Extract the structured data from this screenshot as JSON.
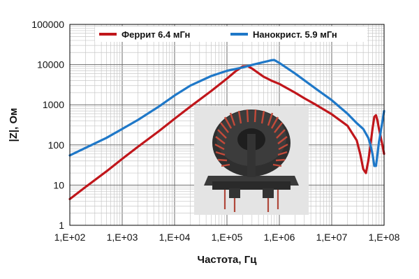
{
  "chart_data": {
    "type": "line",
    "title": "",
    "xlabel": "Частота, Гц",
    "ylabel": "|Z|, Ом",
    "xscale": "log",
    "yscale": "log",
    "xlim": [
      100,
      100000000
    ],
    "ylim": [
      1,
      100000
    ],
    "grid": true,
    "legend_position": "top",
    "x_tick_labels": [
      "1,E+02",
      "1,E+03",
      "1,E+04",
      "1,E+05",
      "1,E+06",
      "1,E+07",
      "1,E+08"
    ],
    "y_tick_labels": [
      "1",
      "10",
      "100",
      "1000",
      "10000",
      "100000"
    ],
    "series": [
      {
        "name": "Феррит  6.4 мГн",
        "color": "#c0161b",
        "x": [
          100,
          200,
          500,
          1000,
          2000,
          5000,
          10000,
          20000,
          50000,
          100000,
          150000,
          200000,
          250000,
          300000,
          500000,
          700000,
          1000000,
          2000000,
          3000000,
          5000000,
          10000000,
          20000000,
          30000000,
          35000000,
          40000000,
          45000000,
          50000000,
          55000000,
          60000000,
          65000000,
          70000000,
          75000000,
          80000000,
          90000000,
          100000000
        ],
        "y": [
          4.5,
          9,
          22,
          45,
          90,
          220,
          450,
          900,
          2200,
          4500,
          7000,
          9000,
          9200,
          8000,
          5000,
          4000,
          3300,
          2000,
          1450,
          1000,
          580,
          300,
          130,
          60,
          25,
          20,
          40,
          100,
          250,
          500,
          550,
          400,
          250,
          120,
          60
        ]
      },
      {
        "name": "Нанокрист.  5.9 мГн",
        "color": "#1f78c8",
        "x": [
          100,
          200,
          500,
          1000,
          2000,
          5000,
          10000,
          20000,
          50000,
          100000,
          200000,
          300000,
          500000,
          700000,
          800000,
          1000000,
          2000000,
          5000000,
          10000000,
          20000000,
          30000000,
          40000000,
          50000000,
          55000000,
          60000000,
          65000000,
          70000000,
          75000000,
          80000000,
          90000000,
          100000000
        ],
        "y": [
          55,
          85,
          150,
          250,
          420,
          900,
          1700,
          3000,
          5200,
          7000,
          8500,
          9800,
          11500,
          12800,
          13000,
          11000,
          6000,
          2500,
          1300,
          600,
          350,
          250,
          150,
          100,
          60,
          30,
          30,
          60,
          120,
          300,
          700
        ]
      }
    ]
  }
}
